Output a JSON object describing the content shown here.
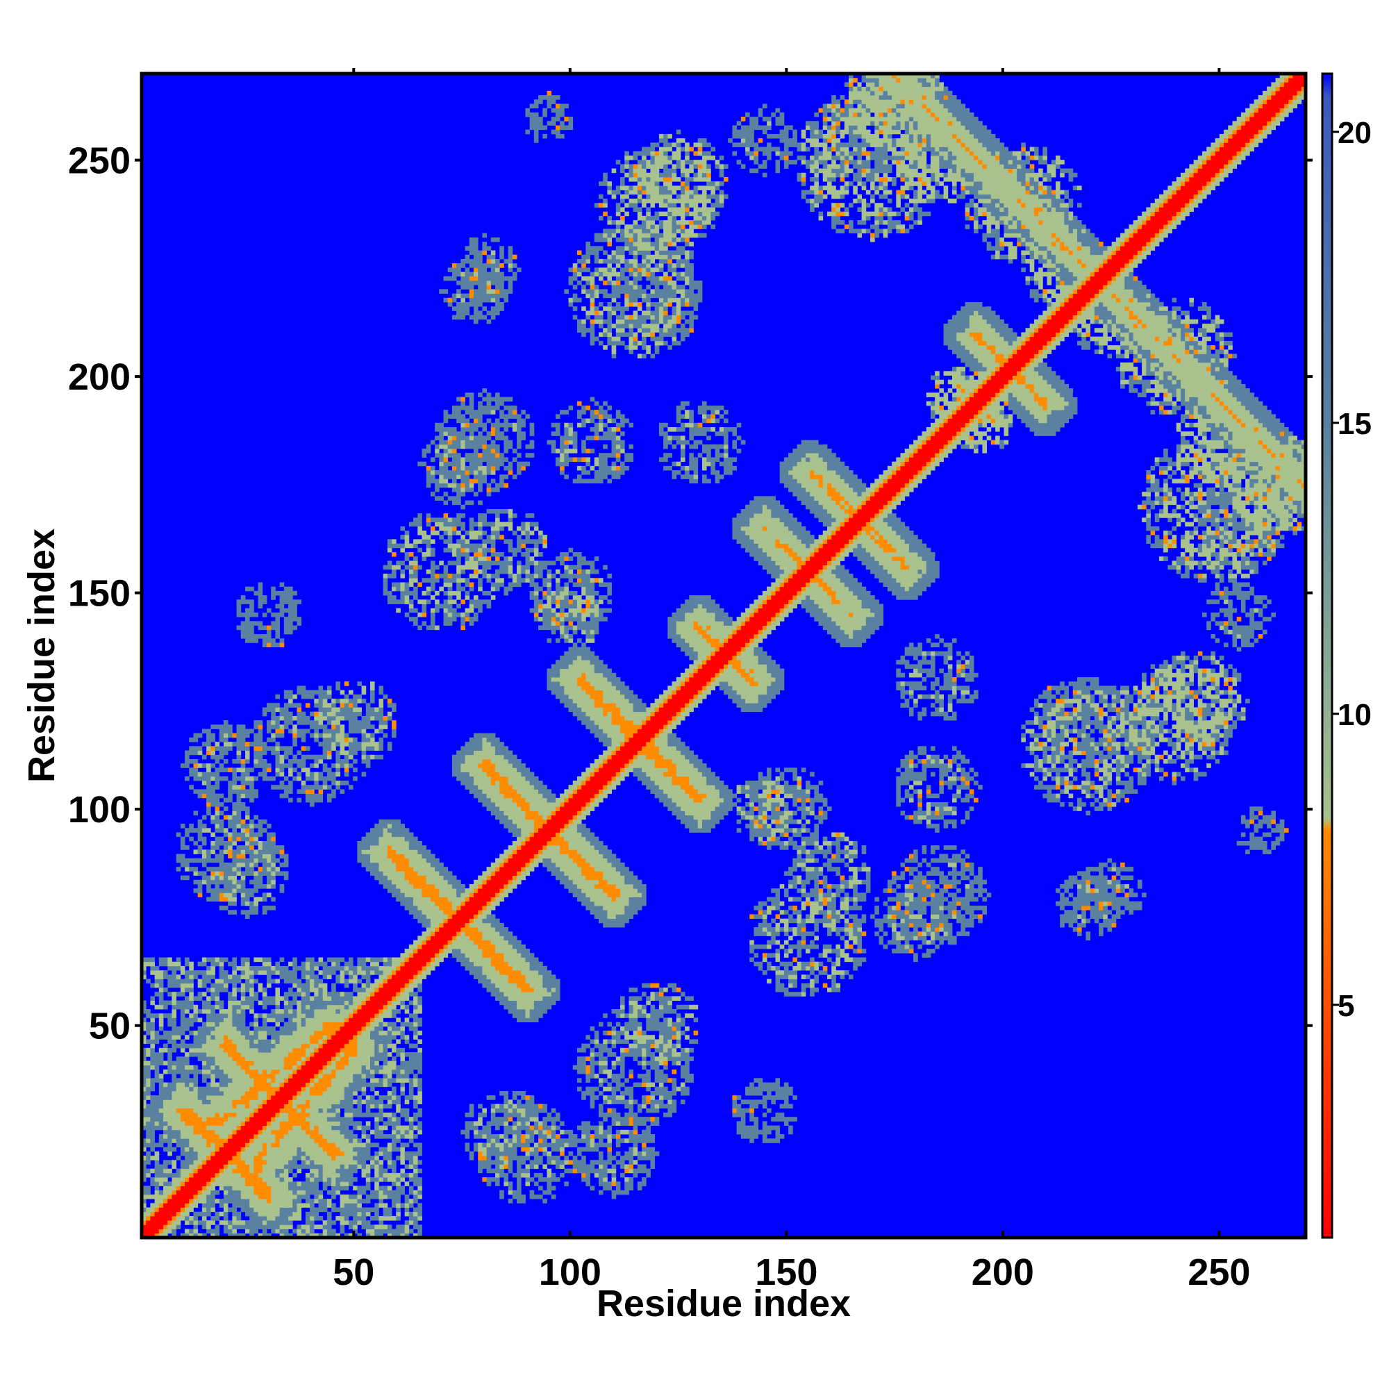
{
  "chart_data": {
    "type": "heatmap",
    "title": "",
    "xlabel": "Residue index",
    "ylabel": "Residue index",
    "n_residues": 270,
    "xlim": [
      1,
      270
    ],
    "ylim": [
      1,
      270
    ],
    "x_ticks": [
      50,
      100,
      150,
      200,
      250
    ],
    "y_ticks": [
      50,
      100,
      150,
      200,
      250
    ],
    "colorbar": {
      "ticks": [
        5,
        10,
        15,
        20
      ],
      "range": [
        1,
        21
      ],
      "colors": [
        "#ff0000",
        "#ff8c00",
        "#a9c28e",
        "#5a82a0",
        "#0000ff"
      ]
    },
    "diagonal_value": 1,
    "background_value": 21,
    "grid": false,
    "contacts": [
      {
        "type": "block",
        "x": [
          1,
          65
        ],
        "y": [
          1,
          65
        ],
        "value": 12
      },
      {
        "type": "band",
        "from": [
          15,
          25
        ],
        "to": [
          45,
          50
        ],
        "value": 5
      },
      {
        "type": "band",
        "from": [
          20,
          45
        ],
        "to": [
          45,
          20
        ],
        "value": 5
      },
      {
        "type": "band",
        "from": [
          10,
          30
        ],
        "to": [
          30,
          10
        ],
        "value": 5
      },
      {
        "type": "band",
        "from": [
          58,
          90
        ],
        "to": [
          90,
          58
        ],
        "value": 5
      },
      {
        "type": "band",
        "from": [
          80,
          110
        ],
        "to": [
          110,
          80
        ],
        "value": 5
      },
      {
        "type": "band",
        "from": [
          102,
          130
        ],
        "to": [
          130,
          102
        ],
        "value": 5
      },
      {
        "type": "band",
        "from": [
          130,
          142
        ],
        "to": [
          142,
          130
        ],
        "value": 5
      },
      {
        "type": "band",
        "from": [
          145,
          165
        ],
        "to": [
          165,
          145
        ],
        "value": 6
      },
      {
        "type": "band",
        "from": [
          156,
          178
        ],
        "to": [
          178,
          156
        ],
        "value": 6
      },
      {
        "type": "band",
        "from": [
          194,
          210
        ],
        "to": [
          210,
          194
        ],
        "value": 6
      },
      {
        "type": "band",
        "from": [
          175,
          270
        ],
        "to": [
          270,
          175
        ],
        "value": 7
      },
      {
        "type": "blob",
        "x": 85,
        "y": 160,
        "r": 10,
        "value": 11
      },
      {
        "type": "blob",
        "x": 100,
        "y": 145,
        "r": 8,
        "value": 11
      },
      {
        "type": "blob",
        "x": 120,
        "y": 240,
        "r": 14,
        "value": 10
      },
      {
        "type": "blob",
        "x": 80,
        "y": 185,
        "r": 12,
        "value": 13
      },
      {
        "type": "blob",
        "x": 130,
        "y": 185,
        "r": 10,
        "value": 12
      },
      {
        "type": "blob",
        "x": 78,
        "y": 220,
        "r": 8,
        "value": 13
      },
      {
        "type": "blob",
        "x": 120,
        "y": 220,
        "r": 10,
        "value": 12
      },
      {
        "type": "blob",
        "x": 40,
        "y": 115,
        "r": 14,
        "value": 12
      },
      {
        "type": "blob",
        "x": 20,
        "y": 90,
        "r": 12,
        "value": 12
      },
      {
        "type": "blob",
        "x": 30,
        "y": 145,
        "r": 8,
        "value": 14
      },
      {
        "type": "blob",
        "x": 120,
        "y": 50,
        "r": 10,
        "value": 11
      },
      {
        "type": "blob",
        "x": 110,
        "y": 20,
        "r": 10,
        "value": 12
      },
      {
        "type": "blob",
        "x": 85,
        "y": 25,
        "r": 10,
        "value": 12
      },
      {
        "type": "blob",
        "x": 155,
        "y": 70,
        "r": 14,
        "value": 11
      },
      {
        "type": "blob",
        "x": 180,
        "y": 75,
        "r": 10,
        "value": 12
      },
      {
        "type": "blob",
        "x": 150,
        "y": 100,
        "r": 10,
        "value": 12
      },
      {
        "type": "blob",
        "x": 185,
        "y": 105,
        "r": 10,
        "value": 12
      },
      {
        "type": "blob",
        "x": 220,
        "y": 115,
        "r": 16,
        "value": 11
      },
      {
        "type": "blob",
        "x": 245,
        "y": 125,
        "r": 12,
        "value": 10
      },
      {
        "type": "blob",
        "x": 225,
        "y": 80,
        "r": 8,
        "value": 12
      },
      {
        "type": "blob",
        "x": 250,
        "y": 170,
        "r": 18,
        "value": 10
      },
      {
        "type": "blob",
        "x": 240,
        "y": 205,
        "r": 14,
        "value": 10
      },
      {
        "type": "blob",
        "x": 175,
        "y": 265,
        "r": 12,
        "value": 8
      },
      {
        "type": "blob",
        "x": 185,
        "y": 250,
        "r": 10,
        "value": 9
      },
      {
        "type": "blob",
        "x": 215,
        "y": 225,
        "r": 10,
        "value": 10
      },
      {
        "type": "blob",
        "x": 165,
        "y": 255,
        "r": 10,
        "value": 12
      },
      {
        "type": "blob",
        "x": 145,
        "y": 255,
        "r": 8,
        "value": 13
      },
      {
        "type": "blob",
        "x": 95,
        "y": 260,
        "r": 6,
        "value": 14
      },
      {
        "type": "blob",
        "x": 190,
        "y": 195,
        "r": 8,
        "value": 9
      }
    ]
  }
}
